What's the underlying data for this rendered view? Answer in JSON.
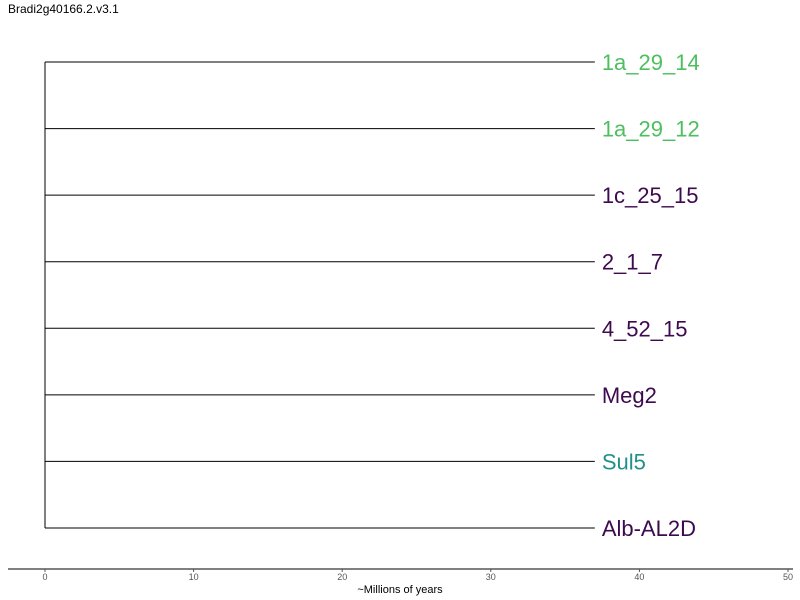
{
  "title": "Bradi2g40166.2.v3.1",
  "chart_data": {
    "type": "dendrogram",
    "title": "Bradi2g40166.2.v3.1",
    "xlabel": "~Millions of years",
    "ylabel": "",
    "xlim": [
      0,
      50
    ],
    "xticks": [
      0,
      10,
      20,
      30,
      40,
      50
    ],
    "grid": false,
    "root_x": 0,
    "tips": [
      {
        "name": "1a_29_14",
        "x": 37,
        "color": "#4dbf5f"
      },
      {
        "name": "1a_29_12",
        "x": 37,
        "color": "#4dbf5f"
      },
      {
        "name": "1c_25_15",
        "x": 37,
        "color": "#3d0a4f"
      },
      {
        "name": "2_1_7",
        "x": 37,
        "color": "#3d0a4f"
      },
      {
        "name": "4_52_15",
        "x": 37,
        "color": "#3d0a4f"
      },
      {
        "name": "Meg2",
        "x": 37,
        "color": "#3d0a4f"
      },
      {
        "name": "Sul5",
        "x": 37,
        "color": "#21908c"
      },
      {
        "name": "Alb-AL2D",
        "x": 37,
        "color": "#3d0a4f"
      }
    ]
  }
}
